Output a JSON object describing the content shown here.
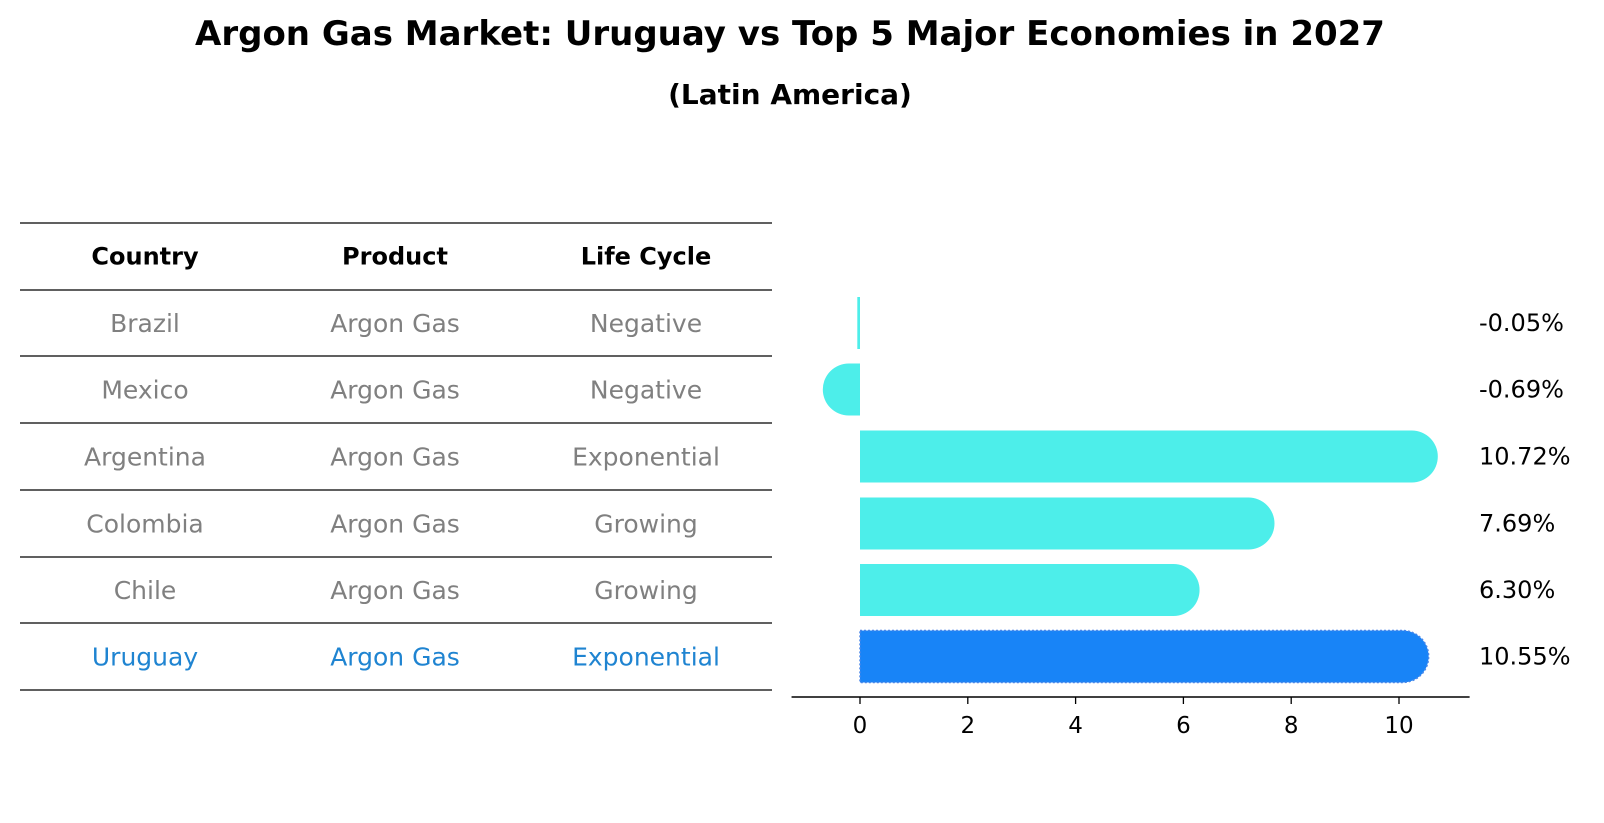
{
  "header": {
    "title": "Argon Gas Market: Uruguay vs Top 5 Major Economies in 2027",
    "subtitle": "(Latin America)"
  },
  "table": {
    "columns": [
      "Country",
      "Product",
      "Life Cycle"
    ],
    "rows": [
      [
        "Brazil",
        "Argon Gas",
        "Negative"
      ],
      [
        "Mexico",
        "Argon Gas",
        "Negative"
      ],
      [
        "Argentina",
        "Argon Gas",
        "Exponential"
      ],
      [
        "Colombia",
        "Argon Gas",
        "Growing"
      ],
      [
        "Chile",
        "Argon Gas",
        "Growing"
      ],
      [
        "Uruguay",
        "Argon Gas",
        "Exponential"
      ]
    ]
  },
  "colors": {
    "bar": "#4deeea",
    "highlight": "#1884f7",
    "table_text": "#808080",
    "highlight_text": "#1f84d1"
  },
  "chart_data": {
    "type": "bar",
    "orientation": "horizontal",
    "categories": [
      "Brazil",
      "Mexico",
      "Argentina",
      "Colombia",
      "Chile",
      "Uruguay"
    ],
    "values": [
      -0.05,
      -0.69,
      10.72,
      7.69,
      6.3,
      10.55
    ],
    "value_labels": [
      "-0.05%",
      "-0.69%",
      "10.72%",
      "7.69%",
      "6.30%",
      "10.55%"
    ],
    "highlight": "Uruguay",
    "xlim": [
      -1.27,
      11.31
    ],
    "xticks": [
      0,
      2,
      4,
      6,
      8,
      10
    ],
    "grid": false
  }
}
